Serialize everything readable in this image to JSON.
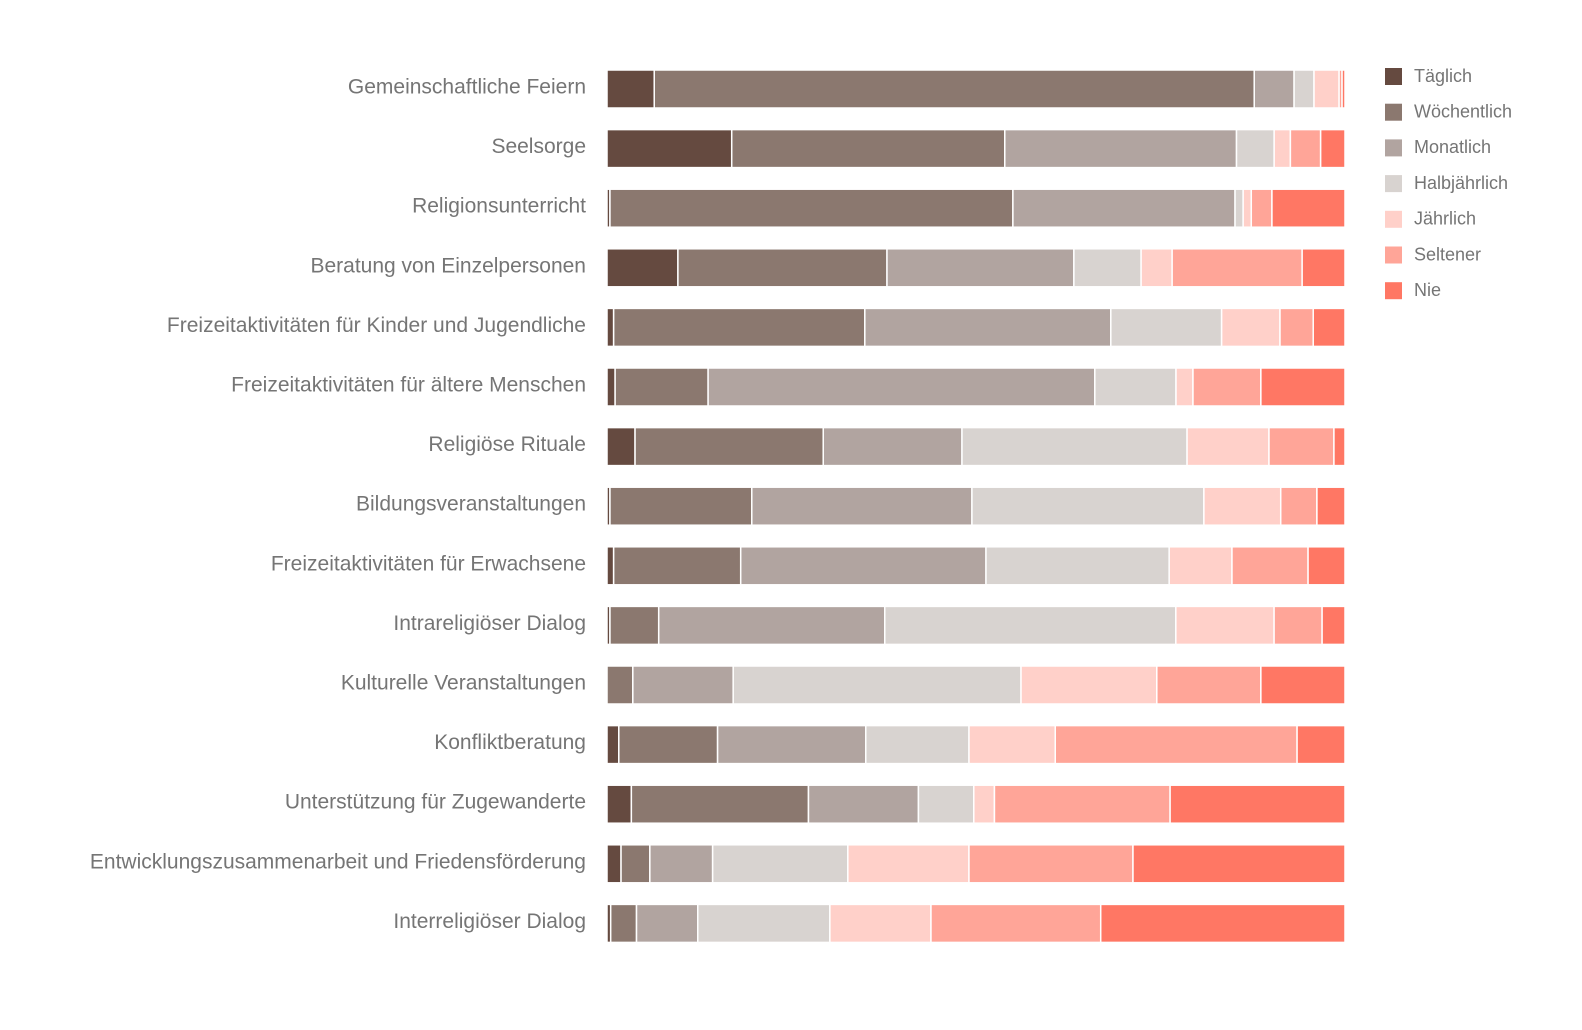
{
  "chart_data": {
    "type": "bar",
    "orientation": "horizontal",
    "stacked": "percent",
    "legend_position": "right",
    "grid": false,
    "xlim": [
      0,
      100
    ],
    "categories": [
      "Gemeinschaftliche Feiern",
      "Seelsorge",
      "Religionsunterricht",
      "Beratung von Einzelpersonen",
      "Freizeitaktivitäten für Kinder und Jugendliche",
      "Freizeitaktivitäten für ältere Menschen",
      "Religiöse Rituale",
      "Bildungsveranstaltungen",
      "Freizeitaktivitäten für Erwachsene",
      "Intrareligiöser Dialog",
      "Kulturelle Veranstaltungen",
      "Konfliktberatung",
      "Unterstützung für Zugewanderte",
      "Entwicklungszusammenarbeit und Friedensförderung",
      "Interreligiöser Dialog"
    ],
    "series": [
      {
        "name": "Täglich",
        "color": "#654a40",
        "values": [
          6.4,
          16.9,
          0.4,
          9.6,
          0.9,
          1.1,
          3.8,
          0.4,
          0.9,
          0.4,
          0.0,
          1.6,
          3.3,
          1.9,
          0.5
        ]
      },
      {
        "name": "Wöchentlich",
        "color": "#8b786f",
        "values": [
          81.3,
          37.0,
          54.6,
          28.3,
          34.0,
          12.6,
          25.5,
          19.2,
          17.2,
          6.6,
          3.5,
          13.4,
          24.0,
          3.9,
          3.5
        ]
      },
      {
        "name": "Monatlich",
        "color": "#b1a4a0",
        "values": [
          5.4,
          31.4,
          30.1,
          25.3,
          33.3,
          52.4,
          18.8,
          29.8,
          33.2,
          30.6,
          13.6,
          20.1,
          14.9,
          8.5,
          8.3
        ]
      },
      {
        "name": "Halbjährlich",
        "color": "#d8d3d0",
        "values": [
          2.7,
          5.1,
          1.1,
          9.1,
          15.0,
          11.0,
          30.5,
          31.4,
          24.8,
          39.4,
          39.0,
          14.0,
          7.5,
          18.3,
          17.9
        ]
      },
      {
        "name": "Jährlich",
        "color": "#ffd0c9",
        "values": [
          3.4,
          2.2,
          1.1,
          4.2,
          7.9,
          2.3,
          11.1,
          10.4,
          8.5,
          13.3,
          18.4,
          11.7,
          2.8,
          16.4,
          13.7
        ]
      },
      {
        "name": "Seltener",
        "color": "#ffa598",
        "values": [
          0.4,
          4.1,
          2.8,
          17.6,
          4.5,
          9.2,
          8.8,
          4.9,
          10.3,
          6.5,
          14.1,
          32.8,
          23.8,
          22.2,
          23.0
        ]
      },
      {
        "name": "Nie",
        "color": "#ff7764",
        "values": [
          0.4,
          3.3,
          9.9,
          5.8,
          4.3,
          11.4,
          1.5,
          3.8,
          5.0,
          3.1,
          11.4,
          6.5,
          23.7,
          28.7,
          33.1
        ]
      }
    ]
  }
}
